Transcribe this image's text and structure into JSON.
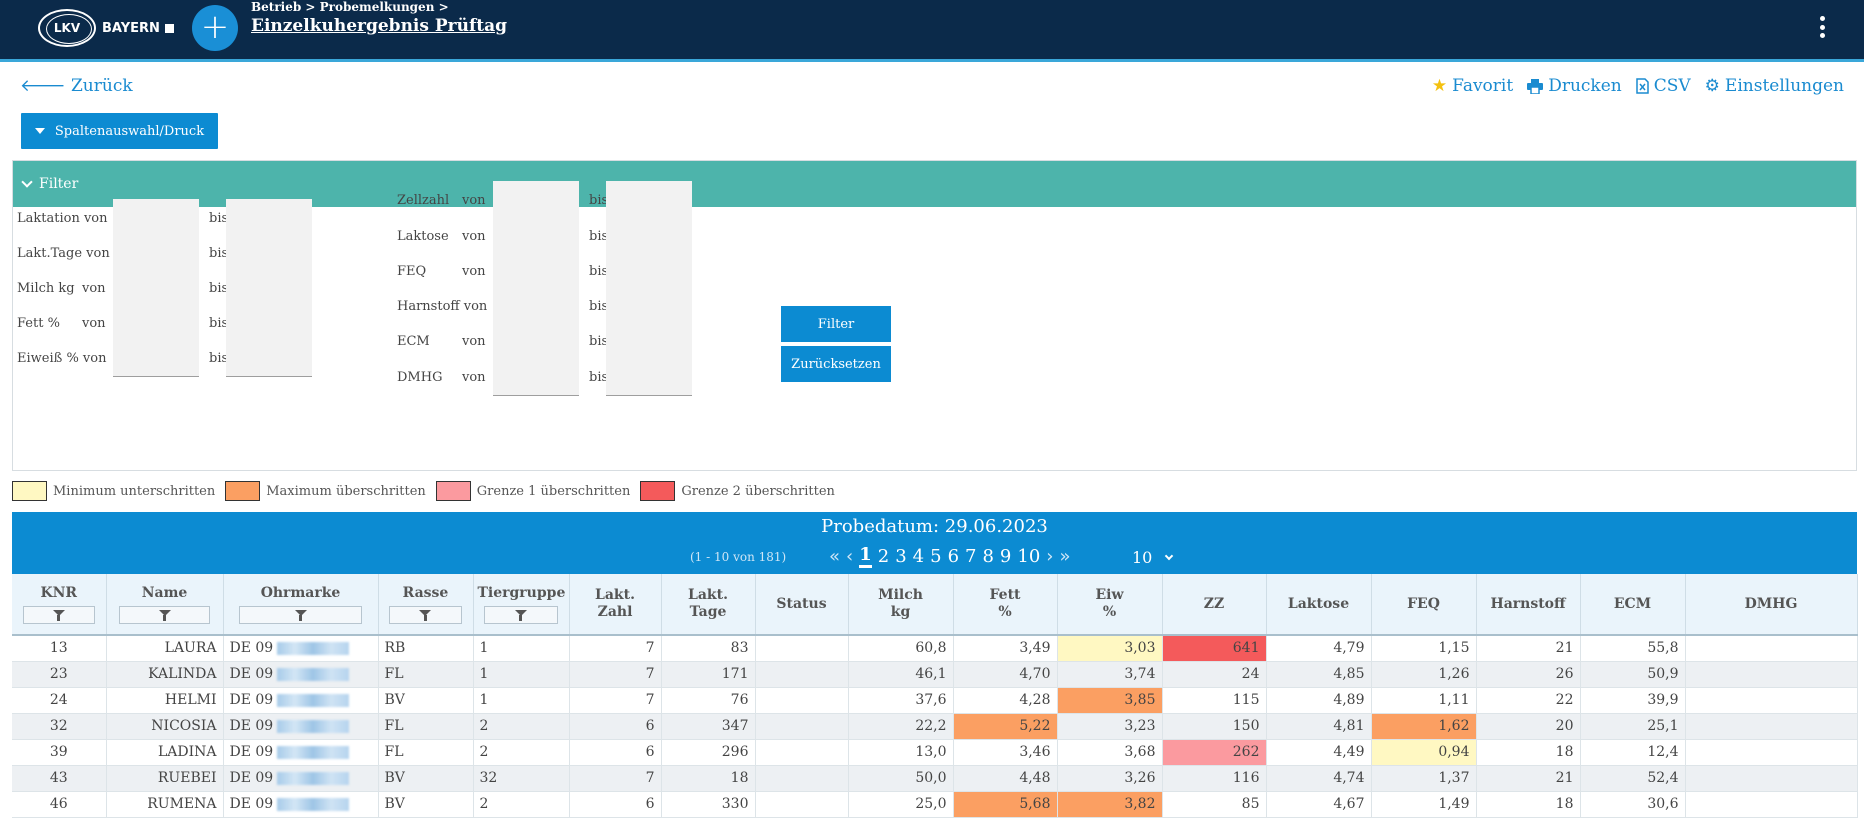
{
  "header": {
    "logo_text": "LKV",
    "logo_brand": "BAYERN",
    "breadcrumb": "Betrieb > Probemelkungen >",
    "title": "Einzelkuhergebnis Prüftag",
    "add_symbol": "+"
  },
  "toolbar": {
    "back_label": "Zurück",
    "favorite_label": "Favorit",
    "print_label": "Drucken",
    "csv_label": "CSV",
    "settings_label": "Einstellungen",
    "columns_button": "Spaltenauswahl/Druck"
  },
  "filter": {
    "title": "Filter",
    "von": "von",
    "bis": "bis",
    "left_fields": [
      "Laktation von",
      "Lakt.Tage von",
      "Milch kg",
      "Fett %",
      "Eiweiß % von"
    ],
    "left_has_von": [
      false,
      false,
      true,
      true,
      false
    ],
    "right_fields": [
      "Zellzahl",
      "Laktose",
      "FEQ",
      "Harnstoff",
      "ECM",
      "DMHG"
    ],
    "right_has_von": [
      true,
      true,
      true,
      false,
      true,
      true
    ],
    "harnstoff_label": "Harnstoff von",
    "filter_button": "Filter",
    "reset_button": "Zurücksetzen"
  },
  "legend": [
    {
      "label": "Minimum unterschritten",
      "color": "#fff8c2"
    },
    {
      "label": "Maximum überschritten",
      "color": "#fb9f62"
    },
    {
      "label": "Grenze 1 überschritten",
      "color": "#fb9a9f"
    },
    {
      "label": "Grenze 2 überschritten",
      "color": "#f45a5b"
    }
  ],
  "table": {
    "caption": "Probedatum: 29.06.2023",
    "count": "(1 - 10 von 181)",
    "pages": [
      "1",
      "2",
      "3",
      "4",
      "5",
      "6",
      "7",
      "8",
      "9",
      "10"
    ],
    "active_page": "1",
    "page_size": "10",
    "columns": [
      "KNR",
      "Name",
      "Ohrmarke",
      "Rasse",
      "Tiergruppe",
      "Lakt.\nZahl",
      "Lakt.\nTage",
      "Status",
      "Milch\nkg",
      "Fett\n%",
      "Eiw\n%",
      "ZZ",
      "Laktose",
      "FEQ",
      "Harnstoff",
      "ECM",
      "DMHG"
    ],
    "filterable_columns": [
      0,
      1,
      2,
      3,
      4
    ],
    "rows": [
      {
        "knr": "13",
        "name": "LAURA",
        "ohrmarke": "DE 09",
        "rasse": "RB",
        "tiergruppe": "1",
        "lakt_zahl": "7",
        "lakt_tage": "83",
        "status": "",
        "milch": "60,8",
        "fett": "3,49",
        "eiw": "3,03",
        "zz": "641",
        "laktose": "4,79",
        "feq": "1,15",
        "harnstoff": "21",
        "ecm": "55,8",
        "dmhg": "",
        "flags": {
          "eiw": "min",
          "zz": "g2"
        }
      },
      {
        "knr": "23",
        "name": "KALINDA",
        "ohrmarke": "DE 09",
        "rasse": "FL",
        "tiergruppe": "1",
        "lakt_zahl": "7",
        "lakt_tage": "171",
        "status": "",
        "milch": "46,1",
        "fett": "4,70",
        "eiw": "3,74",
        "zz": "24",
        "laktose": "4,85",
        "feq": "1,26",
        "harnstoff": "26",
        "ecm": "50,9",
        "dmhg": "",
        "flags": {}
      },
      {
        "knr": "24",
        "name": "HELMI",
        "ohrmarke": "DE 09",
        "rasse": "BV",
        "tiergruppe": "1",
        "lakt_zahl": "7",
        "lakt_tage": "76",
        "status": "",
        "milch": "37,6",
        "fett": "4,28",
        "eiw": "3,85",
        "zz": "115",
        "laktose": "4,89",
        "feq": "1,11",
        "harnstoff": "22",
        "ecm": "39,9",
        "dmhg": "",
        "flags": {
          "eiw": "max"
        }
      },
      {
        "knr": "32",
        "name": "NICOSIA",
        "ohrmarke": "DE 09",
        "rasse": "FL",
        "tiergruppe": "2",
        "lakt_zahl": "6",
        "lakt_tage": "347",
        "status": "",
        "milch": "22,2",
        "fett": "5,22",
        "eiw": "3,23",
        "zz": "150",
        "laktose": "4,81",
        "feq": "1,62",
        "harnstoff": "20",
        "ecm": "25,1",
        "dmhg": "",
        "flags": {
          "fett": "max",
          "feq": "max"
        }
      },
      {
        "knr": "39",
        "name": "LADINA",
        "ohrmarke": "DE 09",
        "rasse": "FL",
        "tiergruppe": "2",
        "lakt_zahl": "6",
        "lakt_tage": "296",
        "status": "",
        "milch": "13,0",
        "fett": "3,46",
        "eiw": "3,68",
        "zz": "262",
        "laktose": "4,49",
        "feq": "0,94",
        "harnstoff": "18",
        "ecm": "12,4",
        "dmhg": "",
        "flags": {
          "zz": "g1",
          "feq": "min"
        }
      },
      {
        "knr": "43",
        "name": "RUEBEI",
        "ohrmarke": "DE 09",
        "rasse": "BV",
        "tiergruppe": "32",
        "lakt_zahl": "7",
        "lakt_tage": "18",
        "status": "",
        "milch": "50,0",
        "fett": "4,48",
        "eiw": "3,26",
        "zz": "116",
        "laktose": "4,74",
        "feq": "1,37",
        "harnstoff": "21",
        "ecm": "52,4",
        "dmhg": "",
        "flags": {}
      },
      {
        "knr": "46",
        "name": "RUMENA",
        "ohrmarke": "DE 09",
        "rasse": "BV",
        "tiergruppe": "2",
        "lakt_zahl": "6",
        "lakt_tage": "330",
        "status": "",
        "milch": "25,0",
        "fett": "5,68",
        "eiw": "3,82",
        "zz": "85",
        "laktose": "4,67",
        "feq": "1,49",
        "harnstoff": "18",
        "ecm": "30,6",
        "dmhg": "",
        "flags": {
          "fett": "max",
          "eiw": "max"
        }
      }
    ]
  },
  "colors": {
    "header_bg": "#0b2a4a",
    "accent": "#0c8bd2",
    "filter_bar": "#4db4ab",
    "link": "#1a8bd0"
  }
}
